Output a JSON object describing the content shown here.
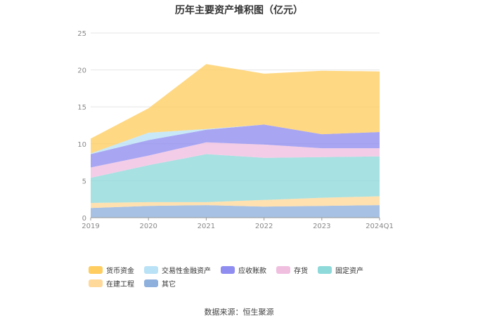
{
  "chart_data": {
    "type": "area",
    "stacked": true,
    "title": "历年主要资产堆积图（亿元）",
    "source": "数据来源：恒生聚源",
    "x": [
      "2019",
      "2020",
      "2021",
      "2022",
      "2023",
      "2024Q1"
    ],
    "ylim": [
      0,
      25
    ],
    "yticks": [
      "0",
      "5",
      "10",
      "15",
      "20",
      "25"
    ],
    "grid": true,
    "legend_position": "bottom",
    "series": [
      {
        "name": "其它",
        "color": "#8eb0dd",
        "values": [
          1.3,
          1.6,
          1.7,
          1.5,
          1.6,
          1.7
        ]
      },
      {
        "name": "在建工程",
        "color": "#ffd99a",
        "values": [
          0.7,
          0.5,
          0.4,
          0.9,
          1.1,
          1.2
        ]
      },
      {
        "name": "固定资产",
        "color": "#8ed9da",
        "values": [
          3.4,
          5.0,
          6.5,
          5.7,
          5.5,
          5.4
        ]
      },
      {
        "name": "存货",
        "color": "#f0bfe0",
        "values": [
          1.4,
          1.3,
          1.6,
          1.8,
          1.2,
          1.1
        ]
      },
      {
        "name": "应收账款",
        "color": "#8f8df0",
        "values": [
          1.8,
          2.1,
          1.7,
          2.7,
          1.9,
          2.2
        ]
      },
      {
        "name": "交易性金融资产",
        "color": "#b9e2f6",
        "values": [
          0.1,
          1.0,
          0.1,
          0.0,
          0.0,
          0.0
        ]
      },
      {
        "name": "货币资金",
        "color": "#ffcd60",
        "values": [
          2.0,
          3.3,
          8.8,
          6.9,
          8.6,
          8.2
        ]
      }
    ],
    "legend_order": [
      "货币资金",
      "交易性金融资产",
      "应收账款",
      "存货",
      "固定资产",
      "在建工程",
      "其它"
    ]
  }
}
